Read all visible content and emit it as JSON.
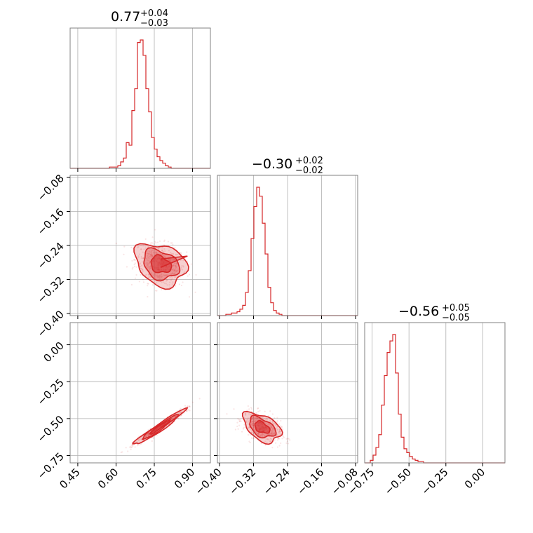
{
  "chart_data": {
    "type": "corner",
    "color": "#d62728",
    "grid": true,
    "parameters": [
      {
        "range": [
          0.42,
          0.97
        ],
        "ticks": [
          "0.45",
          "0.60",
          "0.75",
          "0.90"
        ],
        "tick_values": [
          0.45,
          0.6,
          0.75,
          0.9
        ],
        "title": {
          "median": "0.77",
          "plus": "+0.04",
          "minus": "−0.03"
        }
      },
      {
        "range": [
          -0.405,
          -0.075
        ],
        "ticks": [
          "−0.40",
          "−0.32",
          "−0.24",
          "−0.16",
          "−0.08"
        ],
        "tick_values": [
          -0.4,
          -0.32,
          -0.24,
          -0.16,
          -0.08
        ],
        "title": {
          "median": "−0.30",
          "plus": "+0.02",
          "minus": "−0.02"
        }
      },
      {
        "range": [
          -0.8,
          0.15
        ],
        "ticks": [
          "−0.75",
          "−0.50",
          "−0.25",
          "0.00"
        ],
        "tick_values": [
          -0.75,
          -0.5,
          -0.25,
          0.0
        ],
        "title": {
          "median": "−0.56",
          "plus": "+0.05",
          "minus": "−0.05"
        }
      }
    ],
    "histograms": [
      {
        "param": 0,
        "edges_start": 0.42,
        "bin_width": 0.011,
        "counts": [
          0,
          0,
          0,
          0,
          0,
          0,
          0,
          0,
          0,
          0,
          0,
          0,
          0,
          0,
          1,
          1,
          1,
          2,
          5,
          8,
          20,
          18,
          45,
          62,
          98,
          100,
          88,
          62,
          44,
          24,
          15,
          9,
          6,
          4,
          2,
          1,
          0,
          0,
          0,
          0,
          0,
          0,
          0,
          0,
          0,
          0,
          0,
          0,
          0,
          0
        ]
      },
      {
        "param": 1,
        "edges_start": -0.405,
        "bin_width": 0.0066,
        "counts": [
          0,
          0,
          0,
          1,
          1,
          2,
          2,
          3,
          5,
          8,
          18,
          35,
          60,
          85,
          100,
          93,
          72,
          48,
          22,
          10,
          4,
          2,
          1,
          0,
          0,
          0,
          0,
          0,
          0,
          0,
          0,
          0,
          0,
          0,
          0,
          0,
          0,
          0,
          0,
          0,
          0,
          0,
          0,
          0,
          0,
          0,
          0,
          0,
          0,
          0
        ]
      },
      {
        "param": 2,
        "edges_start": -0.8,
        "bin_width": 0.019,
        "counts": [
          0,
          0,
          2,
          6,
          12,
          22,
          45,
          68,
          86,
          95,
          100,
          70,
          38,
          20,
          11,
          8,
          5,
          3,
          2,
          1,
          1,
          0,
          0,
          0,
          0,
          0,
          0,
          0,
          0,
          0,
          0,
          0,
          0,
          0,
          0,
          0,
          0,
          0,
          0,
          0,
          0,
          0,
          0,
          0,
          0,
          0,
          0,
          0,
          0,
          0
        ]
      }
    ],
    "pairs": [
      {
        "x": 0,
        "y": 1,
        "center": [
          0.775,
          -0.285
        ],
        "spread": [
          0.05,
          0.025
        ],
        "corr": -0.25,
        "peak_tail": [
          0.88,
          -0.265
        ]
      },
      {
        "x": 0,
        "y": 2,
        "center": [
          0.77,
          -0.56
        ],
        "spread": [
          0.05,
          0.06
        ],
        "corr": 0.97
      },
      {
        "x": 1,
        "y": 2,
        "center": [
          -0.3,
          -0.56
        ],
        "spread": [
          0.022,
          0.05
        ],
        "corr": -0.45
      }
    ]
  }
}
